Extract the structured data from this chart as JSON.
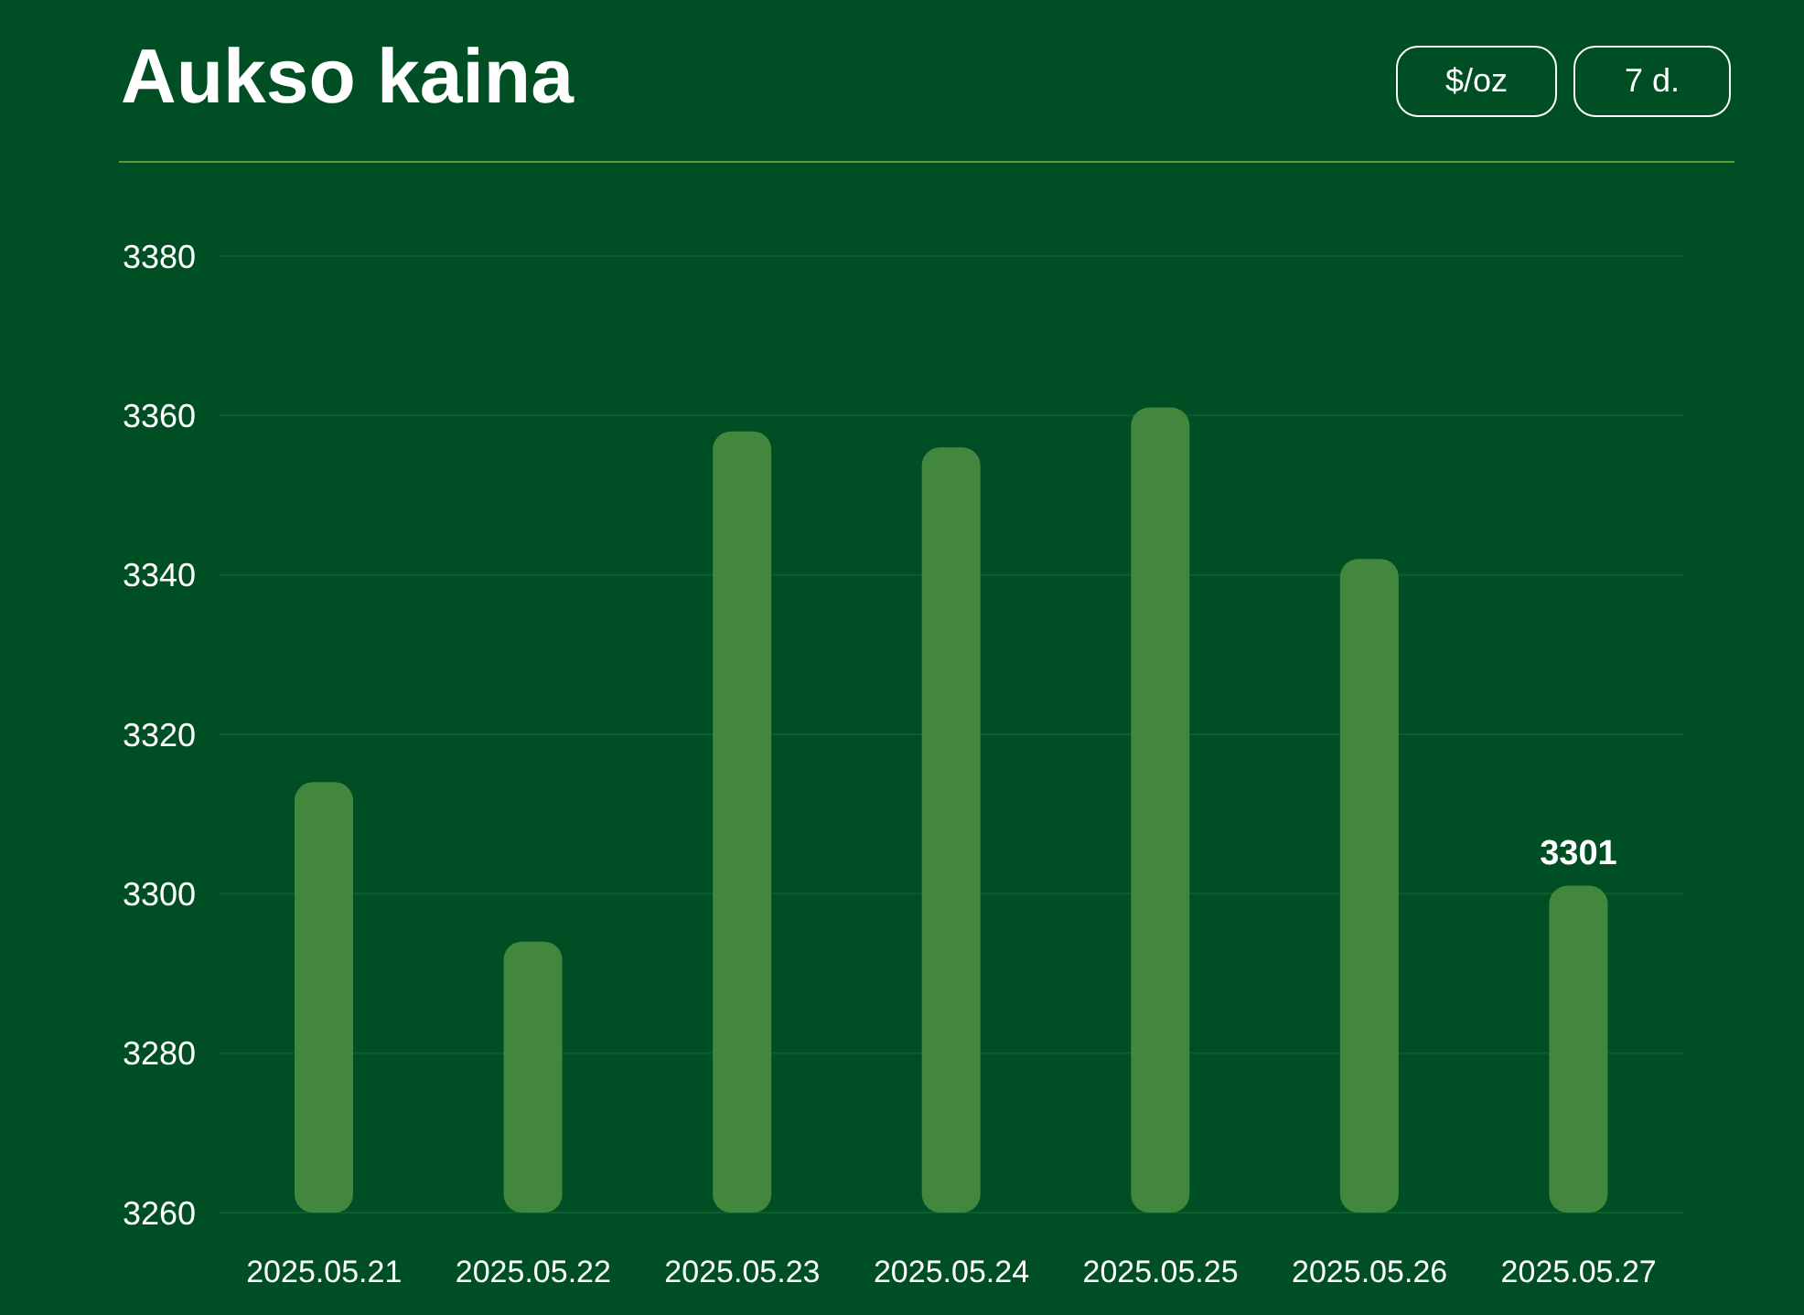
{
  "chart_data": {
    "type": "bar",
    "title": "Aukso kaina",
    "annotations": [
      "$/oz",
      "7 d."
    ],
    "categories": [
      "2025.05.21",
      "2025.05.22",
      "2025.05.23",
      "2025.05.24",
      "2025.05.25",
      "2025.05.26",
      "2025.05.27"
    ],
    "values": [
      3314,
      3294,
      3358,
      3356,
      3361,
      3342,
      3301
    ],
    "value_labels": [
      null,
      null,
      null,
      null,
      null,
      null,
      "3301"
    ],
    "color": "#43873f",
    "ylim": [
      3260,
      3380
    ],
    "yticks": [
      3260,
      3280,
      3300,
      3320,
      3340,
      3360,
      3380
    ],
    "grid": "y"
  }
}
